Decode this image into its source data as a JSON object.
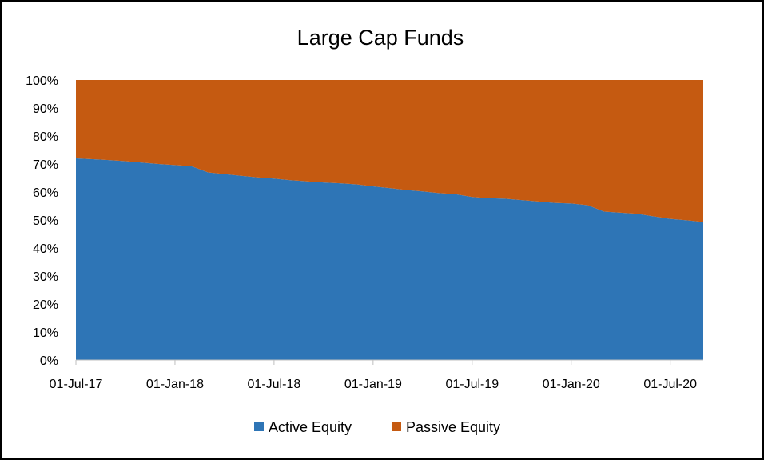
{
  "chart_data": {
    "type": "area",
    "stacked": "percent",
    "title": "Large Cap Funds",
    "xlabel": "",
    "ylabel": "",
    "ylim": [
      0,
      100
    ],
    "yticks": [
      "0%",
      "10%",
      "20%",
      "30%",
      "40%",
      "50%",
      "60%",
      "70%",
      "80%",
      "90%",
      "100%"
    ],
    "xticks": [
      "01-Jul-17",
      "01-Jan-18",
      "01-Jul-18",
      "01-Jan-19",
      "01-Jul-19",
      "01-Jan-20",
      "01-Jul-20"
    ],
    "x": [
      "2017-07-01",
      "2017-08-01",
      "2017-09-01",
      "2017-10-01",
      "2017-11-01",
      "2017-12-01",
      "2018-01-01",
      "2018-02-01",
      "2018-03-01",
      "2018-04-01",
      "2018-05-01",
      "2018-06-01",
      "2018-07-01",
      "2018-08-01",
      "2018-09-01",
      "2018-10-01",
      "2018-11-01",
      "2018-12-01",
      "2019-01-01",
      "2019-02-01",
      "2019-03-01",
      "2019-04-01",
      "2019-05-01",
      "2019-06-01",
      "2019-07-01",
      "2019-08-01",
      "2019-09-01",
      "2019-10-01",
      "2019-11-01",
      "2019-12-01",
      "2020-01-01",
      "2020-02-01",
      "2020-03-01",
      "2020-04-01",
      "2020-05-01",
      "2020-06-01",
      "2020-07-01",
      "2020-08-01",
      "2020-09-01"
    ],
    "series": [
      {
        "name": "Active Equity",
        "color": "#2e75b6",
        "values": [
          72.0,
          71.7,
          71.4,
          71.0,
          70.5,
          70.0,
          69.6,
          69.2,
          67.0,
          66.4,
          65.8,
          65.2,
          64.8,
          64.2,
          63.8,
          63.4,
          63.1,
          62.7,
          62.0,
          61.4,
          60.7,
          60.2,
          59.6,
          59.2,
          58.2,
          57.8,
          57.6,
          57.1,
          56.6,
          56.1,
          55.9,
          55.3,
          53.0,
          52.6,
          52.2,
          51.3,
          50.4,
          49.9,
          49.3
        ]
      },
      {
        "name": "Passive Equity",
        "color": "#c55a11",
        "values": [
          28.0,
          28.3,
          28.6,
          29.0,
          29.5,
          30.0,
          30.4,
          30.8,
          33.0,
          33.6,
          34.2,
          34.8,
          35.2,
          35.8,
          36.2,
          36.6,
          36.9,
          37.3,
          38.0,
          38.6,
          39.3,
          39.8,
          40.4,
          40.8,
          41.8,
          42.2,
          42.4,
          42.9,
          43.4,
          43.9,
          44.1,
          44.7,
          47.0,
          47.4,
          47.8,
          48.7,
          49.6,
          50.1,
          50.7
        ]
      }
    ],
    "grid": false,
    "legend": "bottom"
  }
}
